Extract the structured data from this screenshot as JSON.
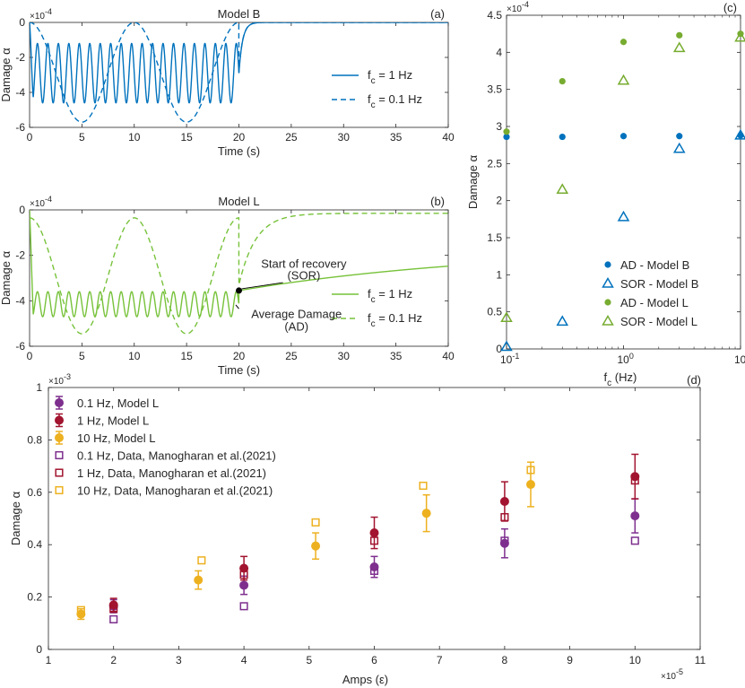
{
  "chart_data": [
    {
      "id": "a",
      "type": "line",
      "panel_label": "(a)",
      "title": "Model B",
      "xlabel": "Time (s)",
      "ylabel": "Damage α",
      "xlim": [
        0,
        40
      ],
      "ylim": [
        -6,
        0
      ],
      "y_exponent": "×10",
      "y_exponent_power": "-4",
      "xticks": [
        "0",
        "5",
        "10",
        "15",
        "20",
        "25",
        "30",
        "35",
        "40"
      ],
      "yticks": [
        "-6",
        "-4",
        "-2",
        "0"
      ],
      "grid": false,
      "legend_position": "bottom-right",
      "series": [
        {
          "name": "f",
          "name_sub": "c",
          "name_rest": " = 1 Hz",
          "color": "#0072BD",
          "style": "solid",
          "model": {
            "type": "oscillation",
            "freq": 1,
            "center": -2.9,
            "amp": 1.7,
            "onset": 0.35,
            "end": 20,
            "relax": 0.35,
            "final": 0
          }
        },
        {
          "name": "f",
          "name_sub": "c",
          "name_rest": " = 0.1 Hz",
          "color": "#0072BD",
          "style": "dashed",
          "model": {
            "type": "oscillation",
            "freq": 0.1,
            "center": -2.85,
            "amp": 2.85,
            "onset": 0,
            "end": 20,
            "relax": 0.35,
            "final": 0
          }
        }
      ]
    },
    {
      "id": "b",
      "type": "line",
      "panel_label": "(b)",
      "title": "Model L",
      "xlabel": "Time (s)",
      "ylabel": "Damage α",
      "xlim": [
        0,
        40
      ],
      "ylim": [
        -6,
        0
      ],
      "y_exponent": "×10",
      "y_exponent_power": "-4",
      "xticks": [
        "0",
        "5",
        "10",
        "15",
        "20",
        "25",
        "30",
        "35",
        "40"
      ],
      "yticks": [
        "-6",
        "-4",
        "-2",
        "0"
      ],
      "grid": false,
      "legend_position": "bottom-right",
      "annotations": [
        {
          "text": "Start of recovery",
          "text2": "(SOR)",
          "point": [
            20,
            -3.55
          ]
        },
        {
          "text": "Average Damage",
          "text2": "(AD)",
          "point": [
            19.5,
            -4.2
          ]
        }
      ],
      "series": [
        {
          "name": "f",
          "name_sub": "c",
          "name_rest": " = 1 Hz",
          "color": "#77C23A",
          "style": "solid",
          "model": {
            "type": "oscillation",
            "freq": 1,
            "center": -4.15,
            "amp": 0.55,
            "onset": 0.35,
            "end": 20,
            "relax_type": "recovery",
            "start": -3.55,
            "final": -1.6,
            "tau": 25
          }
        },
        {
          "name": "f",
          "name_sub": "c",
          "name_rest": " = 0.1 Hz",
          "color": "#77C23A",
          "style": "dashed",
          "model": {
            "type": "oscillation",
            "freq": 0.1,
            "center": -2.9,
            "amp": 2.55,
            "onset": 0,
            "end": 20,
            "relax_type": "fast",
            "start": -3.3,
            "final": -0.15,
            "tau": 1.6
          }
        }
      ]
    },
    {
      "id": "c",
      "type": "scatter",
      "panel_label": "(c)",
      "xlabel": "f",
      "xlabel_sub": "c",
      "xlabel_rest": " (Hz)",
      "ylabel": "Damage α",
      "xscale": "log",
      "xlim": [
        0.1,
        10
      ],
      "ylim": [
        0,
        4.5
      ],
      "y_exponent": "×10",
      "y_exponent_power": "-4",
      "xticks": [
        "10",
        "10",
        "10"
      ],
      "xtick_powers": [
        "-1",
        "0",
        "1"
      ],
      "xtick_values": [
        0.1,
        1,
        10
      ],
      "yticks": [
        "0",
        "0.5",
        "1",
        "1.5",
        "2",
        "2.5",
        "3",
        "3.5",
        "4",
        "4.5"
      ],
      "grid": false,
      "legend_position": "bottom-right",
      "series": [
        {
          "name": "AD - Model B",
          "marker": "circle",
          "color": "#0072BD",
          "x": [
            0.1,
            0.3,
            1,
            3,
            10
          ],
          "y": [
            2.86,
            2.86,
            2.87,
            2.87,
            2.88
          ]
        },
        {
          "name": "SOR - Model B",
          "marker": "triangle",
          "color": "#0072BD",
          "x": [
            0.1,
            0.3,
            1,
            3,
            10
          ],
          "y": [
            0.03,
            0.37,
            1.78,
            2.7,
            2.88
          ]
        },
        {
          "name": "AD - Model L",
          "marker": "circle",
          "color": "#77AC30",
          "x": [
            0.1,
            0.3,
            1,
            3,
            10
          ],
          "y": [
            2.93,
            3.61,
            4.14,
            4.23,
            4.25
          ]
        },
        {
          "name": "SOR - Model L",
          "marker": "triangle",
          "color": "#77AC30",
          "x": [
            0.1,
            0.3,
            1,
            3,
            10
          ],
          "y": [
            0.42,
            2.15,
            3.62,
            4.06,
            4.2
          ]
        }
      ]
    },
    {
      "id": "d",
      "type": "scatter",
      "panel_label": "(d)",
      "xlabel": "Amps (ε)",
      "ylabel": "Damage α",
      "xlim": [
        1,
        11
      ],
      "ylim": [
        0,
        1
      ],
      "y_exponent": "×10",
      "y_exponent_power": "-3",
      "x_exponent": "×10",
      "x_exponent_power": "-5",
      "xticks": [
        "1",
        "2",
        "3",
        "4",
        "5",
        "6",
        "7",
        "8",
        "9",
        "10",
        "11"
      ],
      "yticks": [
        "0",
        "0.2",
        "0.4",
        "0.6",
        "0.8",
        "1"
      ],
      "grid": false,
      "legend_position": "top-left",
      "series": [
        {
          "name": "0.1 Hz, Model L",
          "marker": "circle-errorbar",
          "color": "#7E2F8E",
          "x": [
            2,
            4,
            6,
            8,
            10
          ],
          "y": [
            0.165,
            0.245,
            0.315,
            0.405,
            0.51
          ],
          "err": [
            0.025,
            0.035,
            0.04,
            0.055,
            0.065
          ]
        },
        {
          "name": "1 Hz, Model L",
          "marker": "circle-errorbar",
          "color": "#A2142F",
          "x": [
            2,
            4,
            6,
            8,
            10
          ],
          "y": [
            0.17,
            0.31,
            0.445,
            0.565,
            0.66
          ],
          "err": [
            0.025,
            0.045,
            0.06,
            0.075,
            0.085
          ]
        },
        {
          "name": "10 Hz, Model L",
          "marker": "circle-errorbar",
          "color": "#EDB120",
          "x": [
            1.5,
            3.3,
            5.1,
            6.8,
            8.4
          ],
          "y": [
            0.135,
            0.265,
            0.395,
            0.52,
            0.63
          ],
          "err": [
            0.02,
            0.035,
            0.05,
            0.07,
            0.085
          ]
        },
        {
          "name": "0.1 Hz, Data, Manogharan et al.(2021)",
          "marker": "square",
          "color": "#7E2F8E",
          "x": [
            2,
            4,
            6,
            8,
            10
          ],
          "y": [
            0.115,
            0.165,
            0.3,
            0.415,
            0.415
          ]
        },
        {
          "name": "1 Hz, Data, Manogharan et al.(2021)",
          "marker": "square",
          "color": "#A2142F",
          "x": [
            2,
            4,
            6,
            8,
            10
          ],
          "y": [
            0.155,
            0.285,
            0.415,
            0.505,
            0.645
          ]
        },
        {
          "name": "10 Hz, Data, Manogharan et al.(2021)",
          "marker": "square",
          "color": "#EDB120",
          "x": [
            1.5,
            3.35,
            5.1,
            6.75,
            8.4
          ],
          "y": [
            0.15,
            0.34,
            0.485,
            0.625,
            0.685
          ]
        }
      ]
    }
  ]
}
